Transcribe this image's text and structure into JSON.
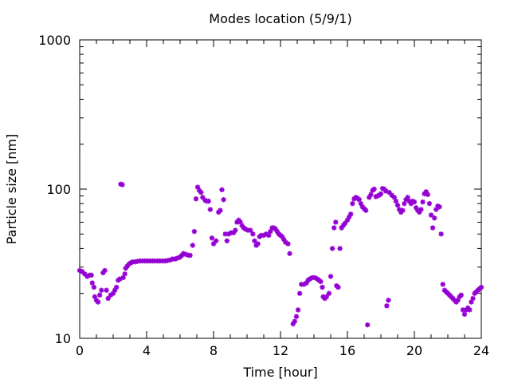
{
  "chart_data": {
    "type": "scatter",
    "title": "Modes location (5/9/1)",
    "xlabel": "Time [hour]",
    "ylabel": "Particle size [nm]",
    "xlim": [
      0,
      24
    ],
    "ylim": [
      10,
      1000
    ],
    "y_scale": "log",
    "x_ticks": [
      0,
      4,
      8,
      12,
      16,
      20,
      24
    ],
    "y_ticks": [
      10,
      100,
      1000
    ],
    "grid": false,
    "marker_color": "#9400d3",
    "series": [
      {
        "points": [
          [
            0.0,
            28.5
          ],
          [
            0.15,
            28.0
          ],
          [
            0.3,
            27.0
          ],
          [
            0.45,
            26.0
          ],
          [
            0.6,
            26.5
          ],
          [
            0.7,
            26.5
          ],
          [
            0.75,
            23.5
          ],
          [
            0.85,
            22.0
          ],
          [
            0.9,
            19.0
          ],
          [
            1.0,
            18.0
          ],
          [
            1.1,
            17.5
          ],
          [
            1.2,
            19.5
          ],
          [
            1.3,
            21.0
          ],
          [
            1.4,
            27.5
          ],
          [
            1.5,
            28.5
          ],
          [
            1.6,
            21.0
          ],
          [
            1.7,
            18.5
          ],
          [
            1.85,
            19.5
          ],
          [
            2.0,
            20.0
          ],
          [
            2.1,
            21.0
          ],
          [
            2.2,
            22.0
          ],
          [
            2.3,
            24.5
          ],
          [
            2.4,
            25.0
          ],
          [
            2.45,
            108.0
          ],
          [
            2.55,
            107.0
          ],
          [
            2.6,
            25.5
          ],
          [
            2.7,
            27.0
          ],
          [
            2.75,
            29.5
          ],
          [
            2.85,
            30.5
          ],
          [
            2.95,
            31.5
          ],
          [
            3.05,
            32.0
          ],
          [
            3.15,
            32.5
          ],
          [
            3.3,
            32.5
          ],
          [
            3.45,
            32.8
          ],
          [
            3.6,
            33.0
          ],
          [
            3.75,
            33.0
          ],
          [
            3.9,
            33.0
          ],
          [
            4.05,
            33.0
          ],
          [
            4.2,
            33.0
          ],
          [
            4.35,
            33.0
          ],
          [
            4.5,
            33.0
          ],
          [
            4.65,
            33.0
          ],
          [
            4.8,
            33.0
          ],
          [
            4.95,
            33.0
          ],
          [
            5.1,
            33.0
          ],
          [
            5.25,
            33.2
          ],
          [
            5.4,
            33.5
          ],
          [
            5.55,
            34.0
          ],
          [
            5.7,
            34.0
          ],
          [
            5.85,
            34.5
          ],
          [
            6.0,
            35.0
          ],
          [
            6.1,
            36.0
          ],
          [
            6.2,
            37.0
          ],
          [
            6.35,
            36.5
          ],
          [
            6.5,
            36.0
          ],
          [
            6.6,
            36.0
          ],
          [
            6.75,
            42.0
          ],
          [
            6.85,
            52.0
          ],
          [
            6.95,
            86.0
          ],
          [
            7.05,
            103.0
          ],
          [
            7.15,
            98.0
          ],
          [
            7.25,
            95.0
          ],
          [
            7.35,
            88.0
          ],
          [
            7.5,
            84.0
          ],
          [
            7.6,
            83.0
          ],
          [
            7.7,
            83.0
          ],
          [
            7.8,
            73.0
          ],
          [
            7.9,
            47.0
          ],
          [
            8.0,
            43.0
          ],
          [
            8.15,
            45.0
          ],
          [
            8.3,
            70.0
          ],
          [
            8.4,
            72.0
          ],
          [
            8.5,
            99.0
          ],
          [
            8.6,
            85.0
          ],
          [
            8.7,
            50.0
          ],
          [
            8.8,
            45.0
          ],
          [
            8.9,
            50.0
          ],
          [
            9.05,
            51.0
          ],
          [
            9.2,
            51.0
          ],
          [
            9.3,
            53.0
          ],
          [
            9.4,
            60.0
          ],
          [
            9.5,
            62.0
          ],
          [
            9.6,
            60.0
          ],
          [
            9.7,
            57.0
          ],
          [
            9.8,
            55.0
          ],
          [
            9.9,
            54.0
          ],
          [
            10.05,
            53.0
          ],
          [
            10.2,
            53.0
          ],
          [
            10.35,
            50.0
          ],
          [
            10.45,
            45.0
          ],
          [
            10.55,
            42.0
          ],
          [
            10.65,
            43.0
          ],
          [
            10.75,
            48.0
          ],
          [
            10.85,
            49.0
          ],
          [
            11.0,
            49.0
          ],
          [
            11.15,
            50.0
          ],
          [
            11.3,
            49.0
          ],
          [
            11.4,
            52.0
          ],
          [
            11.5,
            55.0
          ],
          [
            11.6,
            55.0
          ],
          [
            11.7,
            54.0
          ],
          [
            11.8,
            52.0
          ],
          [
            11.9,
            50.0
          ],
          [
            12.0,
            49.0
          ],
          [
            12.1,
            48.0
          ],
          [
            12.2,
            46.0
          ],
          [
            12.3,
            44.0
          ],
          [
            12.45,
            43.0
          ],
          [
            12.55,
            37.0
          ],
          [
            12.75,
            12.5
          ],
          [
            12.85,
            13.0
          ],
          [
            12.95,
            14.0
          ],
          [
            13.05,
            15.5
          ],
          [
            13.15,
            20.0
          ],
          [
            13.25,
            23.0
          ],
          [
            13.4,
            23.0
          ],
          [
            13.55,
            23.5
          ],
          [
            13.65,
            24.5
          ],
          [
            13.75,
            25.0
          ],
          [
            13.9,
            25.5
          ],
          [
            14.05,
            25.5
          ],
          [
            14.2,
            25.0
          ],
          [
            14.3,
            24.5
          ],
          [
            14.4,
            24.0
          ],
          [
            14.5,
            22.0
          ],
          [
            14.55,
            19.0
          ],
          [
            14.65,
            18.5
          ],
          [
            14.75,
            19.0
          ],
          [
            14.9,
            20.0
          ],
          [
            15.0,
            26.0
          ],
          [
            15.1,
            40.0
          ],
          [
            15.2,
            55.0
          ],
          [
            15.3,
            60.0
          ],
          [
            15.35,
            22.5
          ],
          [
            15.45,
            22.0
          ],
          [
            15.55,
            40.0
          ],
          [
            15.65,
            55.0
          ],
          [
            15.75,
            57.0
          ],
          [
            15.85,
            59.0
          ],
          [
            16.0,
            62.0
          ],
          [
            16.1,
            65.0
          ],
          [
            16.2,
            68.0
          ],
          [
            16.3,
            80.0
          ],
          [
            16.4,
            86.0
          ],
          [
            16.5,
            88.0
          ],
          [
            16.6,
            87.0
          ],
          [
            16.7,
            85.0
          ],
          [
            16.8,
            80.0
          ],
          [
            16.9,
            76.0
          ],
          [
            17.0,
            74.0
          ],
          [
            17.1,
            72.0
          ],
          [
            17.2,
            12.3
          ],
          [
            17.3,
            88.0
          ],
          [
            17.4,
            92.0
          ],
          [
            17.5,
            98.0
          ],
          [
            17.6,
            100.0
          ],
          [
            17.7,
            89.0
          ],
          [
            17.8,
            90.0
          ],
          [
            17.9,
            91.0
          ],
          [
            18.0,
            93.0
          ],
          [
            18.1,
            101.0
          ],
          [
            18.2,
            100.0
          ],
          [
            18.3,
            97.0
          ],
          [
            18.35,
            16.5
          ],
          [
            18.45,
            18.0
          ],
          [
            18.5,
            95.0
          ],
          [
            18.65,
            91.0
          ],
          [
            18.8,
            88.0
          ],
          [
            18.9,
            83.0
          ],
          [
            19.0,
            78.0
          ],
          [
            19.1,
            73.0
          ],
          [
            19.2,
            70.0
          ],
          [
            19.3,
            72.0
          ],
          [
            19.4,
            80.0
          ],
          [
            19.5,
            85.0
          ],
          [
            19.6,
            88.0
          ],
          [
            19.7,
            83.0
          ],
          [
            19.8,
            80.0
          ],
          [
            19.9,
            83.0
          ],
          [
            20.0,
            82.0
          ],
          [
            20.1,
            75.0
          ],
          [
            20.2,
            72.0
          ],
          [
            20.3,
            70.0
          ],
          [
            20.4,
            73.0
          ],
          [
            20.5,
            82.0
          ],
          [
            20.6,
            93.0
          ],
          [
            20.7,
            96.0
          ],
          [
            20.8,
            92.0
          ],
          [
            20.9,
            80.0
          ],
          [
            21.0,
            67.0
          ],
          [
            21.1,
            55.0
          ],
          [
            21.2,
            64.0
          ],
          [
            21.3,
            73.0
          ],
          [
            21.4,
            77.0
          ],
          [
            21.5,
            76.0
          ],
          [
            21.6,
            50.0
          ],
          [
            21.7,
            23.0
          ],
          [
            21.8,
            21.0
          ],
          [
            21.9,
            20.5
          ],
          [
            22.0,
            20.0
          ],
          [
            22.1,
            19.5
          ],
          [
            22.2,
            19.0
          ],
          [
            22.3,
            18.5
          ],
          [
            22.4,
            18.0
          ],
          [
            22.5,
            17.5
          ],
          [
            22.6,
            18.0
          ],
          [
            22.7,
            19.0
          ],
          [
            22.8,
            19.5
          ],
          [
            22.9,
            15.5
          ],
          [
            23.0,
            14.5
          ],
          [
            23.1,
            15.5
          ],
          [
            23.2,
            16.0
          ],
          [
            23.3,
            15.5
          ],
          [
            23.4,
            17.5
          ],
          [
            23.5,
            18.5
          ],
          [
            23.6,
            20.0
          ],
          [
            23.7,
            20.5
          ],
          [
            23.8,
            21.0
          ],
          [
            23.9,
            21.5
          ],
          [
            24.0,
            22.0
          ]
        ]
      }
    ]
  }
}
